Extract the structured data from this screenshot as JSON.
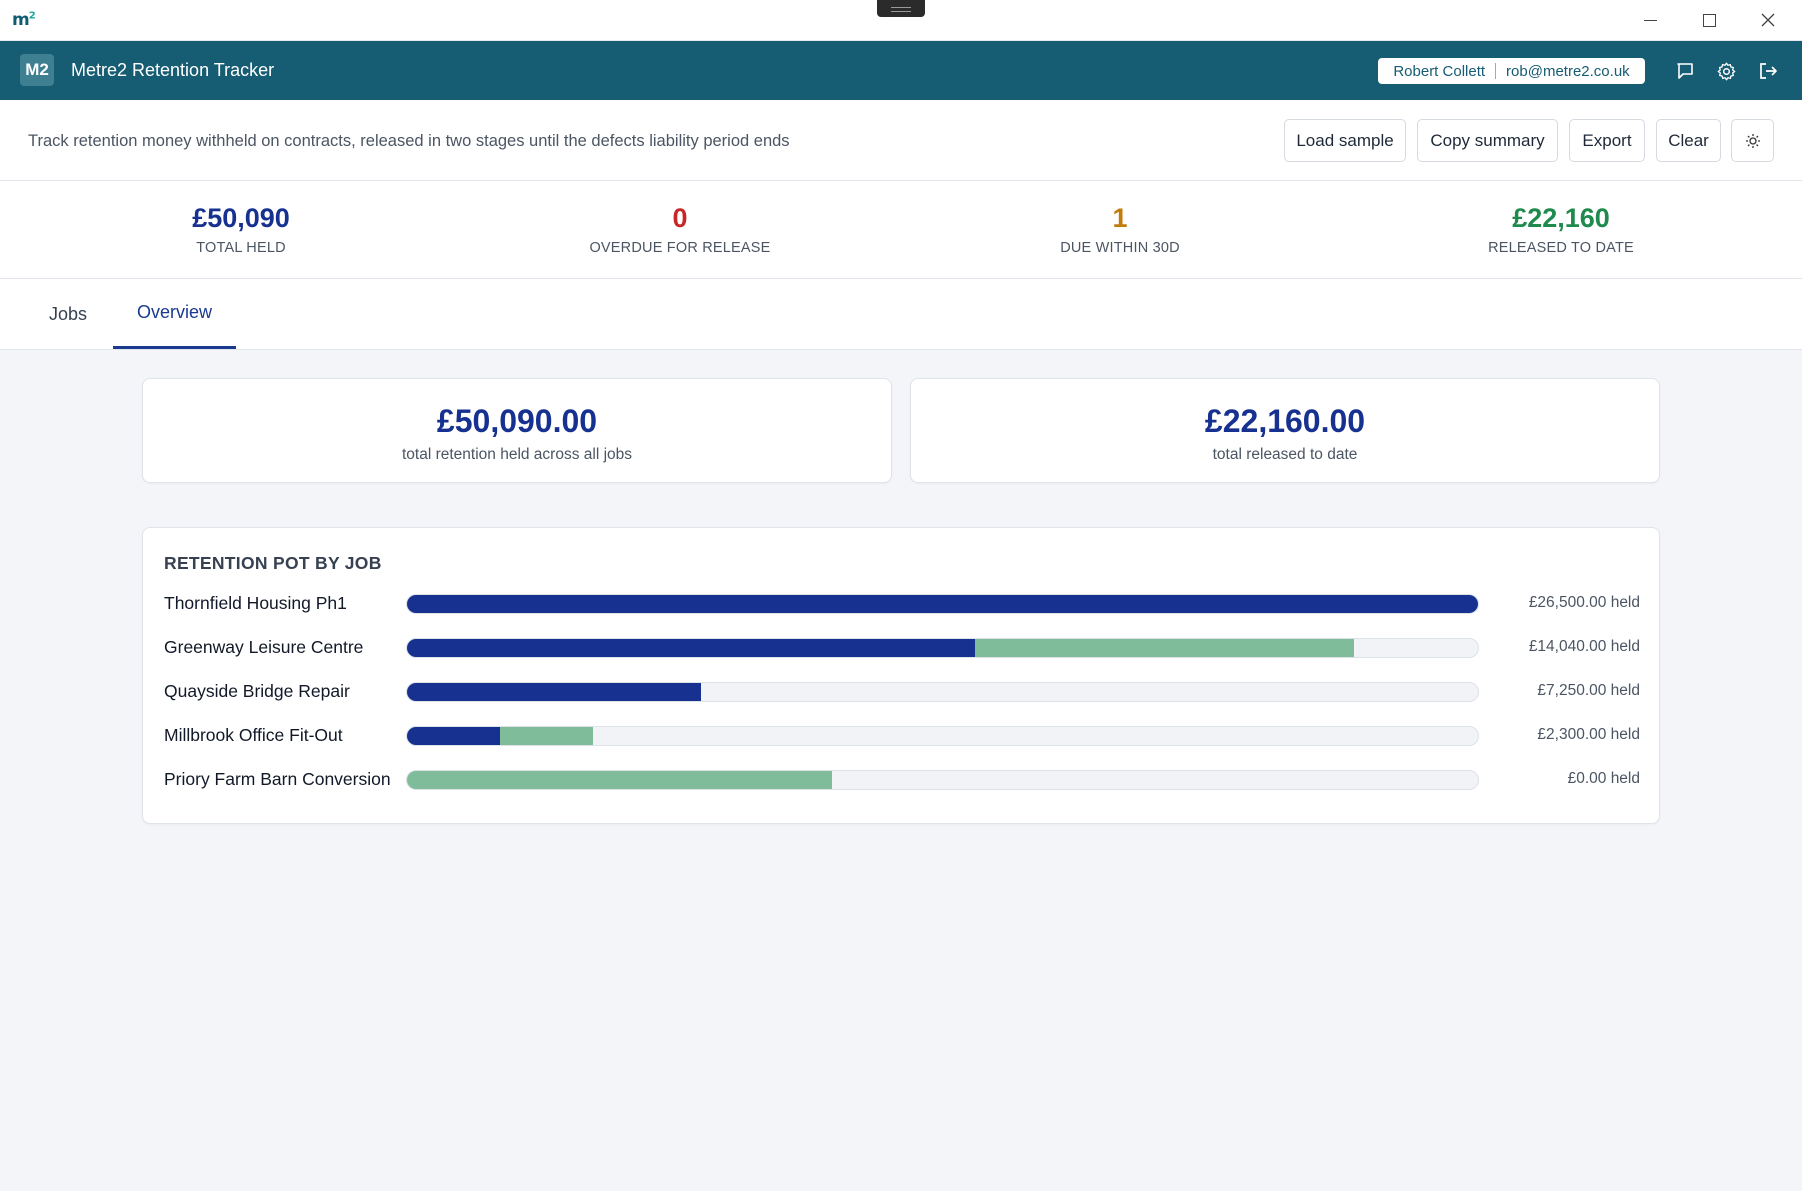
{
  "window": {
    "logo_text": "m",
    "logo_sup": "2"
  },
  "header": {
    "badge": "M2",
    "title": "Metre2 Retention Tracker",
    "user_name": "Robert Collett",
    "user_email": "rob@metre2.co.uk"
  },
  "toolbar": {
    "description": "Track retention money withheld on contracts, released in two stages until the defects liability period ends",
    "load_sample": "Load sample",
    "copy_summary": "Copy summary",
    "export": "Export",
    "clear": "Clear"
  },
  "kpis": [
    {
      "value": "£50,090",
      "label": "TOTAL HELD",
      "color": "#16318f"
    },
    {
      "value": "0",
      "label": "OVERDUE FOR RELEASE",
      "color": "#c62828"
    },
    {
      "value": "1",
      "label": "DUE WITHIN 30D",
      "color": "#c27c0e"
    },
    {
      "value": "£22,160",
      "label": "RELEASED TO DATE",
      "color": "#1e8a4c"
    }
  ],
  "tabs": [
    {
      "label": "Jobs",
      "active": false
    },
    {
      "label": "Overview",
      "active": true
    }
  ],
  "summary": {
    "held_value": "£50,090.00",
    "held_caption": "total retention held across all jobs",
    "released_value": "£22,160.00",
    "released_caption": "total released to date"
  },
  "chart_data": {
    "type": "bar",
    "title": "RETENTION POT BY JOB",
    "stacked": true,
    "orientation": "horizontal",
    "colors": {
      "held": "#16318f",
      "released": "#7fbc99",
      "track": "#f1f3f7"
    },
    "categories": [
      "Thornfield Housing Ph1",
      "Greenway Leisure Centre",
      "Quayside Bridge Repair",
      "Millbrook Office Fit-Out",
      "Priory Farm Barn Conversion"
    ],
    "value_labels": [
      "£26,500.00 held",
      "£14,040.00 held",
      "£7,250.00 held",
      "£2,300.00 held",
      "£0.00 held"
    ],
    "series": [
      {
        "values": [
          26500,
          14040,
          7250,
          2300,
          0
        ]
      },
      {
        "values": [
          0,
          9360,
          0,
          2300,
          10500
        ]
      }
    ],
    "xlim": [
      0,
      26500
    ]
  }
}
